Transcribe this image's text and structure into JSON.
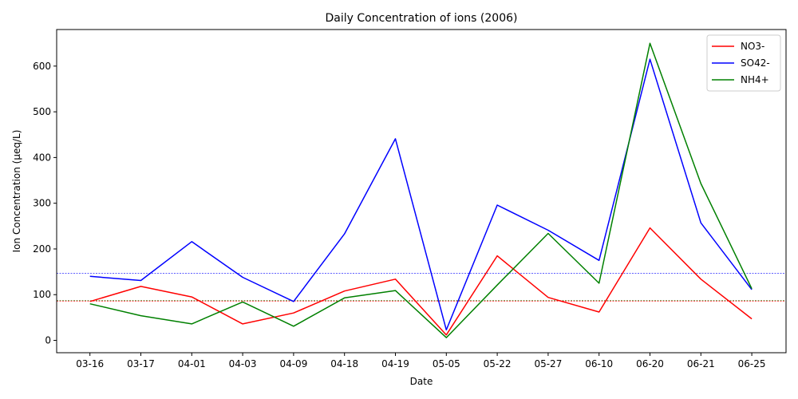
{
  "chart_data": {
    "type": "line",
    "title": "Daily Concentration of ions (2006)",
    "xlabel": "Date",
    "ylabel": "Ion Concentration (µeq/L)",
    "categories": [
      "03-16",
      "03-17",
      "04-01",
      "04-03",
      "04-09",
      "04-18",
      "04-19",
      "05-05",
      "05-22",
      "05-27",
      "06-10",
      "06-20",
      "06-21",
      "06-25"
    ],
    "ylim": [
      -27,
      680
    ],
    "yticks": [
      0,
      100,
      200,
      300,
      400,
      500,
      600
    ],
    "legend_position": "top-right",
    "series": [
      {
        "name": "NO3-",
        "color": "#ff0000",
        "values": [
          85,
          118,
          95,
          36,
          60,
          108,
          134,
          12,
          185,
          94,
          62,
          246,
          134,
          47
        ]
      },
      {
        "name": "SO42-",
        "color": "#0000ff",
        "values": [
          140,
          131,
          216,
          138,
          85,
          233,
          441,
          23,
          296,
          241,
          175,
          615,
          257,
          111
        ]
      },
      {
        "name": "NH4+",
        "color": "#008000",
        "values": [
          80,
          54,
          36,
          84,
          31,
          93,
          109,
          6,
          121,
          234,
          125,
          650,
          343,
          113
        ]
      }
    ],
    "reference_lines": [
      {
        "value": 147,
        "color": "#0000ff"
      },
      {
        "value": 87,
        "color": "#008000"
      },
      {
        "value": 86,
        "color": "#ff0000"
      }
    ]
  }
}
